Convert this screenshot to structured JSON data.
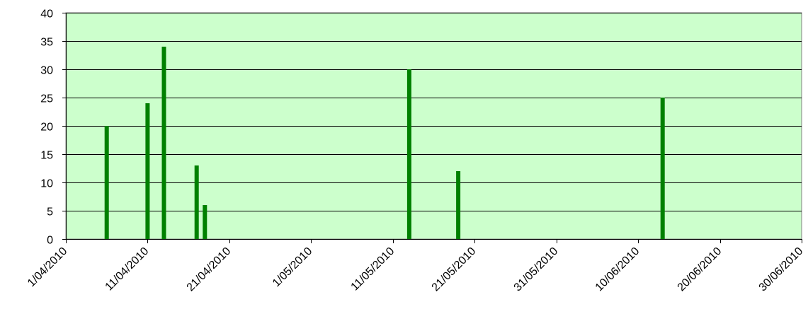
{
  "chart_data": {
    "type": "bar",
    "title": "",
    "xlabel": "",
    "ylabel": "",
    "x_axis": {
      "type": "date",
      "range": [
        "1/04/2010",
        "30/06/2010"
      ],
      "tick_labels": [
        "1/04/2010",
        "11/04/2010",
        "21/04/2010",
        "1/05/2010",
        "11/05/2010",
        "21/05/2010",
        "31/05/2010",
        "10/06/2010",
        "20/06/2010",
        "30/06/2010"
      ]
    },
    "ylim": [
      0,
      40
    ],
    "y_ticks": [
      "0",
      "5",
      "10",
      "15",
      "20",
      "25",
      "30",
      "35",
      "40"
    ],
    "grid": true,
    "legend": "none",
    "series": [
      {
        "x": [
          "6/04/2010",
          "11/04/2010",
          "13/04/2010",
          "17/04/2010",
          "18/04/2010",
          "13/05/2010",
          "19/05/2010",
          "13/06/2010"
        ],
        "values": [
          20,
          24,
          34,
          13,
          6,
          30,
          12,
          25
        ]
      }
    ],
    "colors": {
      "plot_background": "#ccffcc",
      "bar": "#008000",
      "gridline": "#000000"
    }
  }
}
